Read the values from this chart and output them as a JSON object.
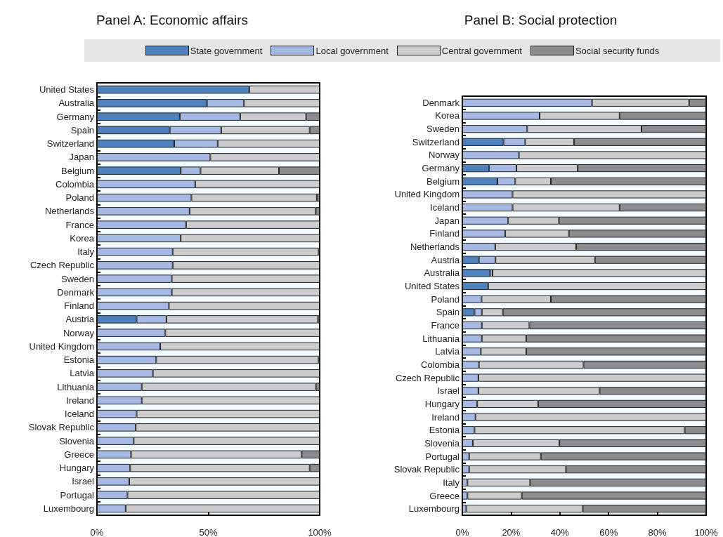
{
  "chart_data": [
    {
      "type": "bar",
      "title": "Panel A: Economic affairs",
      "orientation": "horizontal",
      "stacked": true,
      "legend": "top",
      "grid": false,
      "xlim": [
        0,
        100
      ],
      "xticks": [
        {
          "value": 0,
          "label": "0%"
        },
        {
          "value": 50,
          "label": "50%"
        },
        {
          "value": 100,
          "label": "100%"
        }
      ],
      "categories": [
        "United States",
        "Australia",
        "Germany",
        "Spain",
        "Switzerland",
        "Japan",
        "Belgium",
        "Colombia",
        "Poland",
        "Netherlands",
        "France",
        "Korea",
        "Italy",
        "Czech Republic",
        "Sweden",
        "Denmark",
        "Finland",
        "Austria",
        "Norway",
        "United Kingdom",
        "Estonia",
        "Latvia",
        "Lithuania",
        "Ireland",
        "Iceland",
        "Slovak Republic",
        "Slovenia",
        "Greece",
        "Hungary",
        "Israel",
        "Portugal",
        "Luxembourg"
      ],
      "series": [
        {
          "name": "State government",
          "color": "#4f81bd",
          "values": [
            68.4,
            49.4,
            37.2,
            32.7,
            34.7,
            null,
            37.6,
            null,
            null,
            null,
            null,
            null,
            null,
            null,
            null,
            null,
            null,
            17.8,
            null,
            null,
            null,
            null,
            null,
            null,
            null,
            null,
            null,
            null,
            null,
            null,
            null,
            null
          ]
        },
        {
          "name": "Local government",
          "color": "#a6b8e4",
          "values": [
            null,
            16.6,
            27.1,
            23.1,
            19.5,
            50.9,
            8.9,
            44.1,
            42.4,
            41.6,
            40,
            37.6,
            34,
            34,
            33.6,
            33.6,
            32.3,
            13.4,
            30.7,
            28.4,
            26.6,
            25.1,
            20.1,
            20.1,
            17.8,
            17.4,
            16.5,
            15.3,
            14.9,
            14.5,
            13.7,
            12.9
          ]
        },
        {
          "name": "Central government",
          "color": "#cccccc",
          "values": [
            31.6,
            34,
            29.6,
            39.7,
            45.8,
            49.1,
            35.2,
            55.9,
            56.3,
            56.6,
            60,
            62.4,
            65.5,
            66,
            66.4,
            66.4,
            67.7,
            68,
            69.3,
            71.6,
            72.9,
            74.9,
            78.2,
            79.9,
            82.2,
            82.6,
            83.5,
            76.6,
            80.6,
            85.5,
            86.3,
            87.1
          ]
        },
        {
          "name": "Social security funds",
          "color": "#8c8c8c",
          "values": [
            null,
            null,
            6.1,
            4.5,
            null,
            null,
            18.3,
            null,
            1.3,
            1.8,
            null,
            null,
            0.5,
            null,
            null,
            null,
            null,
            0.8,
            null,
            null,
            0.5,
            null,
            1.7,
            null,
            null,
            null,
            null,
            8.1,
            4.5,
            null,
            null,
            null
          ]
        }
      ]
    },
    {
      "type": "bar",
      "title": "Panel B: Social protection",
      "orientation": "horizontal",
      "stacked": true,
      "legend": "top",
      "grid": false,
      "xlim": [
        0,
        100
      ],
      "xticks": [
        {
          "value": 0,
          "label": "0%"
        },
        {
          "value": 20,
          "label": "20%"
        },
        {
          "value": 40,
          "label": "40%"
        },
        {
          "value": 60,
          "label": "60%"
        },
        {
          "value": 80,
          "label": "80%"
        },
        {
          "value": 100,
          "label": "100%"
        }
      ],
      "categories": [
        "Denmark",
        "Korea",
        "Sweden",
        "Switzerland",
        "Norway",
        "Germany",
        "Belgium",
        "United Kingdom",
        "Iceland",
        "Japan",
        "Finland",
        "Netherlands",
        "Austria",
        "Australia",
        "United States",
        "Poland",
        "Spain",
        "France",
        "Lithuania",
        "Latvia",
        "Colombia",
        "Czech Republic",
        "Israel",
        "Hungary",
        "Ireland",
        "Estonia",
        "Slovenia",
        "Portugal",
        "Slovak Republic",
        "Italy",
        "Greece",
        "Luxembourg"
      ],
      "series": [
        {
          "name": "State government",
          "color": "#4f81bd",
          "values": [
            null,
            null,
            null,
            16.9,
            null,
            11,
            14.4,
            null,
            null,
            null,
            null,
            null,
            6.8,
            11.4,
            10.6,
            null,
            5,
            null,
            null,
            null,
            null,
            null,
            null,
            null,
            null,
            null,
            null,
            null,
            null,
            null,
            null,
            null
          ]
        },
        {
          "name": "Local government",
          "color": "#a6b8e4",
          "values": [
            53.2,
            31.7,
            26.6,
            8.9,
            23.2,
            11.2,
            7.3,
            20.6,
            20.6,
            18.8,
            17.6,
            13.5,
            6.8,
            1,
            null,
            7.9,
            3,
            8,
            8,
            7.6,
            6.8,
            6.6,
            6.6,
            6.1,
            5.4,
            5,
            4.3,
            2.8,
            2.8,
            2.1,
            2.1,
            1.6
          ]
        },
        {
          "name": "Central government",
          "color": "#cccccc",
          "values": [
            39.8,
            32.8,
            46.9,
            20,
            76.8,
            25.1,
            14.6,
            79.4,
            43.9,
            20.8,
            26.1,
            33.2,
            40.8,
            87.6,
            89.4,
            28.4,
            8.6,
            19.5,
            18.2,
            18.6,
            42.9,
            93.4,
            49.7,
            25,
            94.6,
            86.2,
            35.5,
            29.4,
            39.7,
            25.7,
            22.3,
            47.8
          ]
        },
        {
          "name": "Social security funds",
          "color": "#8c8c8c",
          "values": [
            7,
            35.5,
            26.5,
            54.2,
            null,
            52.7,
            63.7,
            null,
            35.5,
            60.4,
            56.3,
            53.3,
            45.6,
            null,
            null,
            63.7,
            83.4,
            72.5,
            73.8,
            73.8,
            50.3,
            null,
            43.7,
            68.9,
            null,
            8.8,
            60.2,
            67.8,
            57.5,
            72.2,
            75.6,
            50.6
          ]
        }
      ]
    }
  ]
}
